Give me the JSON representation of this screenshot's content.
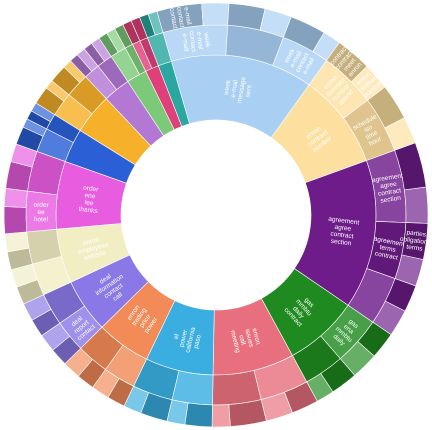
{
  "chart_data": {
    "type": "sunburst",
    "sectors": [
      {
        "name": "docs",
        "color": "#a9cff3",
        "label_color": "#1a3f6e",
        "value": 21,
        "label": [
          "week",
          "e-mail",
          "message",
          "sent"
        ],
        "children": [
          {
            "name": "a",
            "value": 8,
            "label": [
              "week",
              "e-mail",
              "contact",
              "e-mail"
            ],
            "children": [
              {
                "name": "a1",
                "value": 5,
                "label": [
                  "e-mail",
                  "contact",
                  "contact"
                ]
              },
              {
                "name": "a2",
                "value": 3
              }
            ]
          },
          {
            "name": "b",
            "value": 7,
            "children": [
              {
                "name": "b1",
                "value": 4
              },
              {
                "name": "b2",
                "value": 3
              }
            ]
          },
          {
            "name": "c",
            "value": 6,
            "label": [
              "week",
              "e-mail",
              "contact",
              "e-mail"
            ],
            "children": [
              {
                "name": "c1",
                "value": 4
              },
              {
                "name": "c2",
                "value": 2
              }
            ]
          }
        ]
      },
      {
        "name": "schedule",
        "color": "#fde0a0",
        "label_color": "#1a3f6e",
        "value": 14,
        "label": [
          "enron",
          "contract",
          "number"
        ],
        "children": [
          {
            "name": "s1",
            "value": 7,
            "label": [
              "enron",
              "contract",
              "number",
              "attend"
            ],
            "children": [
              {
                "name": "s1a",
                "value": 4,
                "label": [
                  "contract",
                  "contract",
                  "meet",
                  "enron"
                ]
              },
              {
                "name": "s1b",
                "value": 3,
                "label": [
                  "enron",
                  "contract",
                  "number"
                ]
              }
            ]
          },
          {
            "name": "s2",
            "value": 7,
            "label": [
              "schedule",
              "iso",
              "time",
              "hour"
            ],
            "children": [
              {
                "name": "s2a",
                "value": 4
              },
              {
                "name": "s2b",
                "value": 3
              }
            ]
          }
        ]
      },
      {
        "name": "legal",
        "color": "#6e1c8a",
        "label_color": "#ffffff",
        "value": 22,
        "label": [
          "agreement",
          "agree",
          "contract",
          "section"
        ],
        "children": [
          {
            "name": "l1",
            "value": 9,
            "label": [
              "agreement",
              "agree",
              "contract",
              "section"
            ],
            "children": [
              {
                "name": "l1a",
                "value": 5
              },
              {
                "name": "l1b",
                "value": 4
              }
            ]
          },
          {
            "name": "l2",
            "value": 7,
            "label": [
              "agreement",
              "terms",
              "contract"
            ],
            "children": [
              {
                "name": "l2a",
                "value": 4,
                "label": [
                  "parties",
                  "obligations",
                  "terms"
                ]
              },
              {
                "name": "l2b",
                "value": 3
              }
            ]
          },
          {
            "name": "l3",
            "value": 6,
            "children": [
              {
                "name": "l3a",
                "value": 3
              },
              {
                "name": "l3b",
                "value": 3
              }
            ]
          }
        ]
      },
      {
        "name": "gas",
        "color": "#1f8a1f",
        "label_color": "#ffffff",
        "value": 11,
        "label": [
          "gas",
          "mmbtu",
          "daily",
          "contract"
        ],
        "children": [
          {
            "name": "g1",
            "value": 6,
            "label": [
              "gas",
              "ena",
              "mmbtu",
              "daily"
            ],
            "children": [
              {
                "name": "g1a",
                "value": 3
              },
              {
                "name": "g1b",
                "value": 3
              }
            ]
          },
          {
            "name": "g2",
            "value": 5,
            "children": [
              {
                "name": "g2a",
                "value": 3
              },
              {
                "name": "g2b",
                "value": 2
              }
            ]
          }
        ]
      },
      {
        "name": "calls",
        "color": "#e8707e",
        "label_color": "#ffffff",
        "value": 12,
        "label": [
          "enron",
          "issues",
          "call",
          "meeting"
        ],
        "children": [
          {
            "name": "c1",
            "value": 6,
            "children": [
              {
                "name": "c1a",
                "value": 3
              },
              {
                "name": "c1b",
                "value": 3
              }
            ]
          },
          {
            "name": "c2",
            "value": 6,
            "children": [
              {
                "name": "c2a",
                "value": 4
              },
              {
                "name": "c2b",
                "value": 2
              }
            ]
          }
        ]
      },
      {
        "name": "power",
        "color": "#3aaee0",
        "label_color": "#ffffff",
        "value": 10,
        "label": [
          "el",
          "power",
          "california",
          "paso"
        ],
        "children": [
          {
            "name": "p1",
            "value": 5,
            "children": [
              {
                "name": "p1a",
                "value": 3
              },
              {
                "name": "p1b",
                "value": 2
              }
            ]
          },
          {
            "name": "p2",
            "value": 5,
            "children": [
              {
                "name": "p2a",
                "value": 3
              },
              {
                "name": "p2b",
                "value": 2
              }
            ]
          }
        ]
      },
      {
        "name": "trading",
        "color": "#f28b58",
        "label_color": "#ffffff",
        "value": 8,
        "label": [
          "enron",
          "trading",
          "price",
          "power"
        ],
        "children": [
          {
            "name": "t1",
            "value": 4,
            "children": [
              {
                "name": "t1a",
                "value": 2
              },
              {
                "name": "t1b",
                "value": 2
              }
            ]
          },
          {
            "name": "t2",
            "value": 4,
            "children": [
              {
                "name": "t2a",
                "value": 2
              },
              {
                "name": "t2b",
                "value": 2
              }
            ]
          }
        ]
      },
      {
        "name": "deal",
        "color": "#8a78e6",
        "label_color": "#ffffff",
        "value": 8,
        "label": [
          "deal",
          "information",
          "contact",
          "call"
        ],
        "children": [
          {
            "name": "d1",
            "value": 4,
            "label": [
              "deal",
              "report",
              "contact"
            ],
            "children": [
              {
                "name": "d1a",
                "value": 2
              },
              {
                "name": "d1b",
                "value": 2
              }
            ]
          },
          {
            "name": "d2",
            "value": 4,
            "children": [
              {
                "name": "d2a",
                "value": 2
              },
              {
                "name": "d2b",
                "value": 2
              }
            ]
          }
        ]
      },
      {
        "name": "hr",
        "color": "#f1eec4",
        "label_color": "#1a3f6e",
        "value": 8,
        "label": [
          "enron",
          "employees",
          "website"
        ],
        "children": [
          {
            "name": "h1",
            "value": 4,
            "children": [
              {
                "name": "h1a",
                "value": 2
              },
              {
                "name": "h1b",
                "value": 2
              }
            ]
          },
          {
            "name": "h2",
            "value": 4,
            "children": [
              {
                "name": "h2a",
                "value": 2
              },
              {
                "name": "h2b",
                "value": 2
              }
            ]
          }
        ]
      },
      {
        "name": "travel",
        "color": "#e85ce0",
        "label_color": "#ffffff",
        "value": 10,
        "label": [
          "order",
          "ene",
          "fee",
          "thanks"
        ],
        "children": [
          {
            "name": "tr1",
            "value": 5,
            "label": [
              "order",
              "ee",
              "hotel"
            ],
            "children": [
              {
                "name": "tr1a",
                "value": 3
              },
              {
                "name": "tr1b",
                "value": 2
              }
            ]
          },
          {
            "name": "tr2",
            "value": 5,
            "children": [
              {
                "name": "tr2a",
                "value": 3
              },
              {
                "name": "tr2b",
                "value": 2
              }
            ]
          }
        ]
      },
      {
        "name": "misc-blue",
        "color": "#2a5fd6",
        "label_color": "#ffffff",
        "value": 5,
        "children": [
          {
            "name": "mb1",
            "value": 3,
            "children": [
              {
                "name": "mb1a",
                "value": 2
              },
              {
                "name": "mb1b",
                "value": 1
              }
            ]
          },
          {
            "name": "mb2",
            "value": 2,
            "children": [
              {
                "name": "mb2a",
                "value": 1
              },
              {
                "name": "mb2b",
                "value": 1
              }
            ]
          }
        ]
      },
      {
        "name": "misc-gold",
        "color": "#f7b02a",
        "label_color": "#ffffff",
        "value": 6,
        "children": [
          {
            "name": "mg1",
            "value": 3,
            "children": [
              {
                "name": "mg1a",
                "value": 2
              },
              {
                "name": "mg1b",
                "value": 1
              }
            ]
          },
          {
            "name": "mg2",
            "value": 3,
            "children": [
              {
                "name": "mg2a",
                "value": 2
              },
              {
                "name": "mg2b",
                "value": 1
              }
            ]
          }
        ]
      },
      {
        "name": "misc-lilac",
        "color": "#b278d4",
        "label_color": "#ffffff",
        "value": 4,
        "children": [
          {
            "name": "ml1",
            "value": 2,
            "children": [
              {
                "name": "ml1a",
                "value": 1
              },
              {
                "name": "ml1b",
                "value": 1
              }
            ]
          },
          {
            "name": "ml2",
            "value": 2,
            "children": [
              {
                "name": "ml2a",
                "value": 1
              },
              {
                "name": "ml2b",
                "value": 1
              }
            ]
          }
        ]
      },
      {
        "name": "misc-green",
        "color": "#7cc97a",
        "label_color": "#ffffff",
        "value": 3,
        "children": [
          {
            "name": "mgr1",
            "value": 2,
            "children": [
              {
                "name": "mgr1a",
                "value": 1
              },
              {
                "name": "mgr1b",
                "value": 1
              }
            ]
          },
          {
            "name": "mgr2",
            "value": 1,
            "children": [
              {
                "name": "mgr2a",
                "value": 1
              }
            ]
          }
        ]
      },
      {
        "name": "misc-red",
        "color": "#e0407a",
        "label_color": "#ffffff",
        "value": 2,
        "children": [
          {
            "name": "mr1",
            "value": 1,
            "children": [
              {
                "name": "mr1a",
                "value": 1
              }
            ]
          },
          {
            "name": "mr2",
            "value": 1,
            "children": [
              {
                "name": "mr2a",
                "value": 1
              }
            ]
          }
        ]
      },
      {
        "name": "misc-teal",
        "color": "#2aa7a0",
        "label_color": "#ffffff",
        "value": 2,
        "children": [
          {
            "name": "mt1",
            "value": 2,
            "children": [
              {
                "name": "mt1a",
                "value": 1
              },
              {
                "name": "mt1b",
                "value": 1
              }
            ]
          }
        ]
      }
    ]
  }
}
